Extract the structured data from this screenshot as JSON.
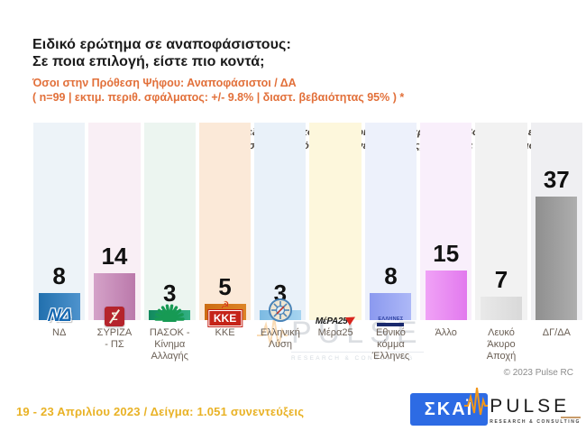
{
  "header": {
    "title_line1": "Ειδικό ερώτημα σε αναποφάσιστους:",
    "title_line2": "Σε ποια επιλογή, είστε πιο κοντά;",
    "subtitle_line1": "Όσοι στην Πρόθεση Ψήφου: Αναποφάσιστοι / ΔΑ",
    "subtitle_line2": "( n=99  |  εκτιμ. περιθ. σφάλματος: +/- 9.8%  |  διαστ. βεβαιότητας 95% ) *"
  },
  "annotation": {
    "line1": "Ανεξάρτητα από τι θα ψηφίσετε στις ερχόμενες βουλευτικές εκλογές,",
    "line2": "σε ποια από τις επόμενες επιλογές, θα λέγατε ότι είστε πιο κοντά;"
  },
  "watermark": {
    "name": "PULSE",
    "tagline": "RESEARCH & CONSULTING"
  },
  "chart_data": {
    "type": "bar",
    "title": "Ειδικό ερώτημα σε αναποφάσιστους: Σε ποια επιλογή, είστε πιο κοντά;",
    "categories": [
      "ΝΔ",
      "ΣΥΡΙΖΑ - ΠΣ",
      "ΠΑΣΟΚ - Κίνημα Αλλαγής",
      "ΚΚΕ",
      "Ελληνική Λύση",
      "Μέρα25",
      "Εθνικό κόμμα Έλληνες",
      "Άλλο",
      "Λευκό Άκυρο Αποχή",
      "ΔΓ/ΔΑ"
    ],
    "values": [
      8,
      14,
      3,
      5,
      3,
      null,
      8,
      15,
      7,
      37
    ],
    "unit": "percent",
    "xlabel": "",
    "ylabel": "",
    "ylim": [
      0,
      40
    ],
    "grid": false,
    "legend": "none"
  },
  "parties": [
    {
      "id": "nd",
      "label_lines": [
        "ΝΔ"
      ],
      "value": 8,
      "bar_colors": [
        "#2270ae",
        "#4e93cd"
      ],
      "band_color": "#edf3f8",
      "logo": "nd",
      "logo_text": "ΝΔ"
    },
    {
      "id": "syriza",
      "label_lines": [
        "ΣΥΡΙΖΑ",
        "- ΠΣ"
      ],
      "value": 14,
      "bar_colors": [
        "#d4a2c8",
        "#bb79ab"
      ],
      "band_color": "#f9eff5",
      "logo": "syriza",
      "logo_text": "Σ"
    },
    {
      "id": "pasok",
      "label_lines": [
        "ΠΑΣΟΚ -",
        "Κίνημα",
        "Αλλαγής"
      ],
      "value": 3,
      "bar_colors": [
        "#118a5e",
        "#33b083"
      ],
      "band_color": "#ecf5f0",
      "logo": "pasok",
      "logo_text": ""
    },
    {
      "id": "kke",
      "label_lines": [
        "ΚΚΕ"
      ],
      "value": 5,
      "bar_colors": [
        "#cc6d14",
        "#dd8426"
      ],
      "band_color": "#fbe9d8",
      "logo": "kke",
      "logo_text": "ΚΚΕ"
    },
    {
      "id": "elliniki-lysi",
      "label_lines": [
        "Ελληνική",
        "Λύση"
      ],
      "value": 3,
      "bar_colors": [
        "#7cbae2",
        "#a6d4f0"
      ],
      "band_color": "#e9f1f9",
      "logo": "ellysi",
      "logo_text": ""
    },
    {
      "id": "mera25",
      "label_lines": [
        "Μέρα25"
      ],
      "value": null,
      "bar_colors": [
        "#fdf7dc",
        "#fdf7dc"
      ],
      "band_color": "#fdf7dc",
      "logo": "mera25",
      "logo_text": "ΜέΡΑ25"
    },
    {
      "id": "ethniko-komma-ellines",
      "label_lines": [
        "Εθνικό",
        "κόμμα",
        "Έλληνες"
      ],
      "value": 8,
      "bar_colors": [
        "#8b99ef",
        "#adb8f7"
      ],
      "band_color": "#edf1fb",
      "logo": "ellines",
      "logo_text": "ΕΛΛΗΝΕΣ"
    },
    {
      "id": "allo",
      "label_lines": [
        "Άλλο"
      ],
      "value": 15,
      "bar_colors": [
        "#f0a2f6",
        "#e279ee"
      ],
      "band_color": "#f9effb",
      "logo": "none",
      "logo_text": ""
    },
    {
      "id": "lefko-akyro-apoxi",
      "label_lines": [
        "Λευκό",
        "Άκυρο",
        "Αποχή"
      ],
      "value": 7,
      "bar_colors": [
        "#e9e9e9",
        "#d9d9d9"
      ],
      "band_color": "#f2f2f2",
      "logo": "none",
      "logo_text": ""
    },
    {
      "id": "dg-da",
      "label_lines": [
        "ΔΓ/ΔΑ"
      ],
      "value": 37,
      "bar_colors": [
        "#8f8f8f",
        "#aeaeae"
      ],
      "band_color": "#efeff2",
      "logo": "none",
      "logo_text": ""
    }
  ],
  "footer": {
    "copyright": "© 2023 Pulse RC",
    "fieldwork": "19 - 23  Απριλίου  2023  /  Δείγμα:  1.051 συνεντεύξεις",
    "skai_logo_text": "ΣΚΑΪ",
    "pulse_logo_text": "PULSE",
    "pulse_tagline": "RESEARCH & CONSULTING"
  },
  "colors": {
    "title": "#1a1a1a",
    "subtitle_orange": "#e2703a",
    "annotation": "#49433c",
    "label": "#6b6056",
    "fieldwork_gold": "#e9b225",
    "skai_blue": "#2d6be4",
    "pulse_orange": "#f2971b"
  }
}
